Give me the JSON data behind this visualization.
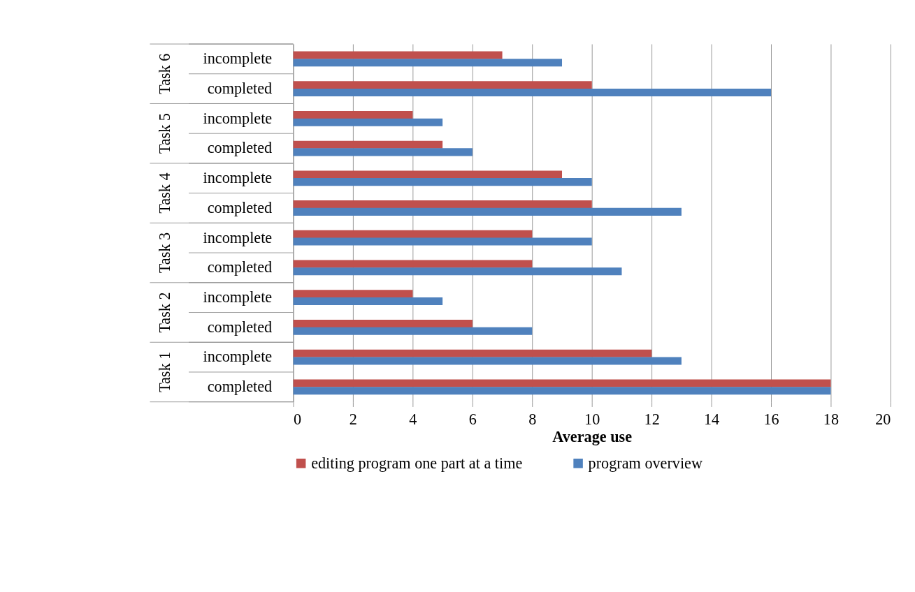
{
  "chart_data": {
    "type": "bar",
    "orientation": "horizontal",
    "categories": [
      "incomplete",
      "completed",
      "incomplete",
      "completed",
      "incomplete",
      "completed",
      "incomplete",
      "completed",
      "incomplete",
      "completed",
      "incomplete",
      "completed"
    ],
    "annotations": [
      "Task 6",
      "Task 5",
      "Task 4",
      "Task 3",
      "Task 2",
      "Task 1"
    ],
    "series": [
      {
        "name": "editing program one part at a time",
        "color": "#c0504d",
        "values": [
          7,
          10,
          4,
          5,
          9,
          10,
          8,
          8,
          4,
          6,
          12,
          18
        ]
      },
      {
        "name": "program overview",
        "color": "#4f81bd",
        "values": [
          9,
          16,
          5,
          6,
          10,
          13,
          10,
          11,
          5,
          8,
          13,
          18
        ]
      }
    ],
    "xlabel": "Average use",
    "xlim": [
      0,
      20
    ],
    "xticks": [
      0,
      2,
      4,
      6,
      8,
      10,
      12,
      14,
      16,
      18,
      20
    ],
    "grid": "x",
    "legend": "bottom"
  }
}
